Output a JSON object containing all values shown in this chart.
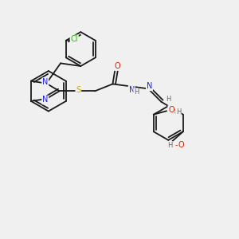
{
  "background_color": "#f0f0f0",
  "bond_color": "#1a1a1a",
  "atom_colors": {
    "N": "#2020dd",
    "O": "#cc2200",
    "S": "#ccaa00",
    "Cl": "#22bb00",
    "H": "#666666",
    "C": "#1a1a1a"
  },
  "figsize": [
    3.0,
    3.0
  ],
  "dpi": 100
}
